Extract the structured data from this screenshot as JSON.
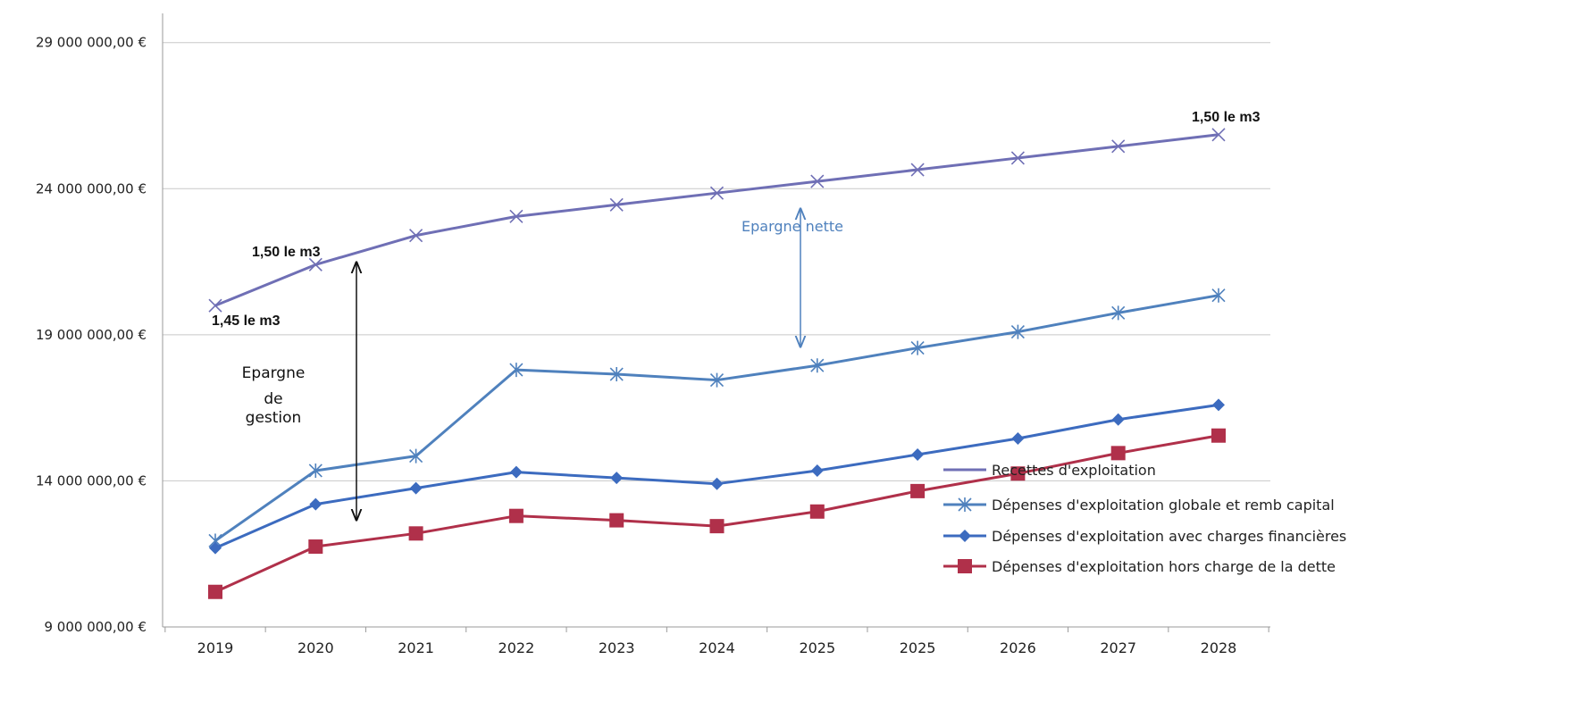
{
  "chart_data": {
    "type": "line",
    "title": "",
    "xlabel": "",
    "ylabel": "",
    "categories": [
      "2019",
      "2020",
      "2021",
      "2022",
      "2023",
      "2024",
      "2025",
      "2025",
      "2026",
      "2027",
      "2028"
    ],
    "ylim": [
      9000000,
      30000000
    ],
    "yticks": [
      9000000,
      14000000,
      19000000,
      24000000,
      29000000
    ],
    "ytick_labels": [
      "9 000 000,00 €",
      "14 000 000,00 €",
      "19 000 000,00 €",
      "24 000 000,00 €",
      "29 000 000,00 €"
    ],
    "grid": true,
    "legend_position": "bottom-right",
    "series": [
      {
        "name": "Recettes d'exploitation",
        "color": "#6f6fb5",
        "marker": "x",
        "values": [
          20000000,
          21400000,
          22400000,
          23050000,
          23450000,
          23850000,
          24250000,
          24650000,
          25050000,
          25450000,
          25850000
        ]
      },
      {
        "name": "Dépenses d'exploitation globale et remb capital",
        "color": "#4f81bd",
        "marker": "asterisk",
        "values": [
          11950000,
          14350000,
          14850000,
          17800000,
          17650000,
          17450000,
          17950000,
          18550000,
          19100000,
          19750000,
          20350000
        ]
      },
      {
        "name": "Dépenses d'exploitation avec charges financières",
        "color": "#3c6bbf",
        "marker": "diamond",
        "values": [
          11700000,
          13200000,
          13750000,
          14300000,
          14100000,
          13900000,
          14350000,
          14900000,
          15450000,
          16100000,
          16600000
        ]
      },
      {
        "name": "Dépenses d'exploitation hors charge de la dette",
        "color": "#b0304a",
        "marker": "square",
        "values": [
          10200000,
          11750000,
          12200000,
          12800000,
          12650000,
          12450000,
          12950000,
          13650000,
          14250000,
          14950000,
          15550000
        ]
      }
    ],
    "annotations": {
      "price_end": "1,50 le m3",
      "price_2020": "1,50 le m3",
      "price_2019": "1,45 le m3",
      "epargne_nette": "Epargne nette",
      "epargne_gestion": [
        "Epargne",
        "de",
        "gestion"
      ]
    }
  }
}
